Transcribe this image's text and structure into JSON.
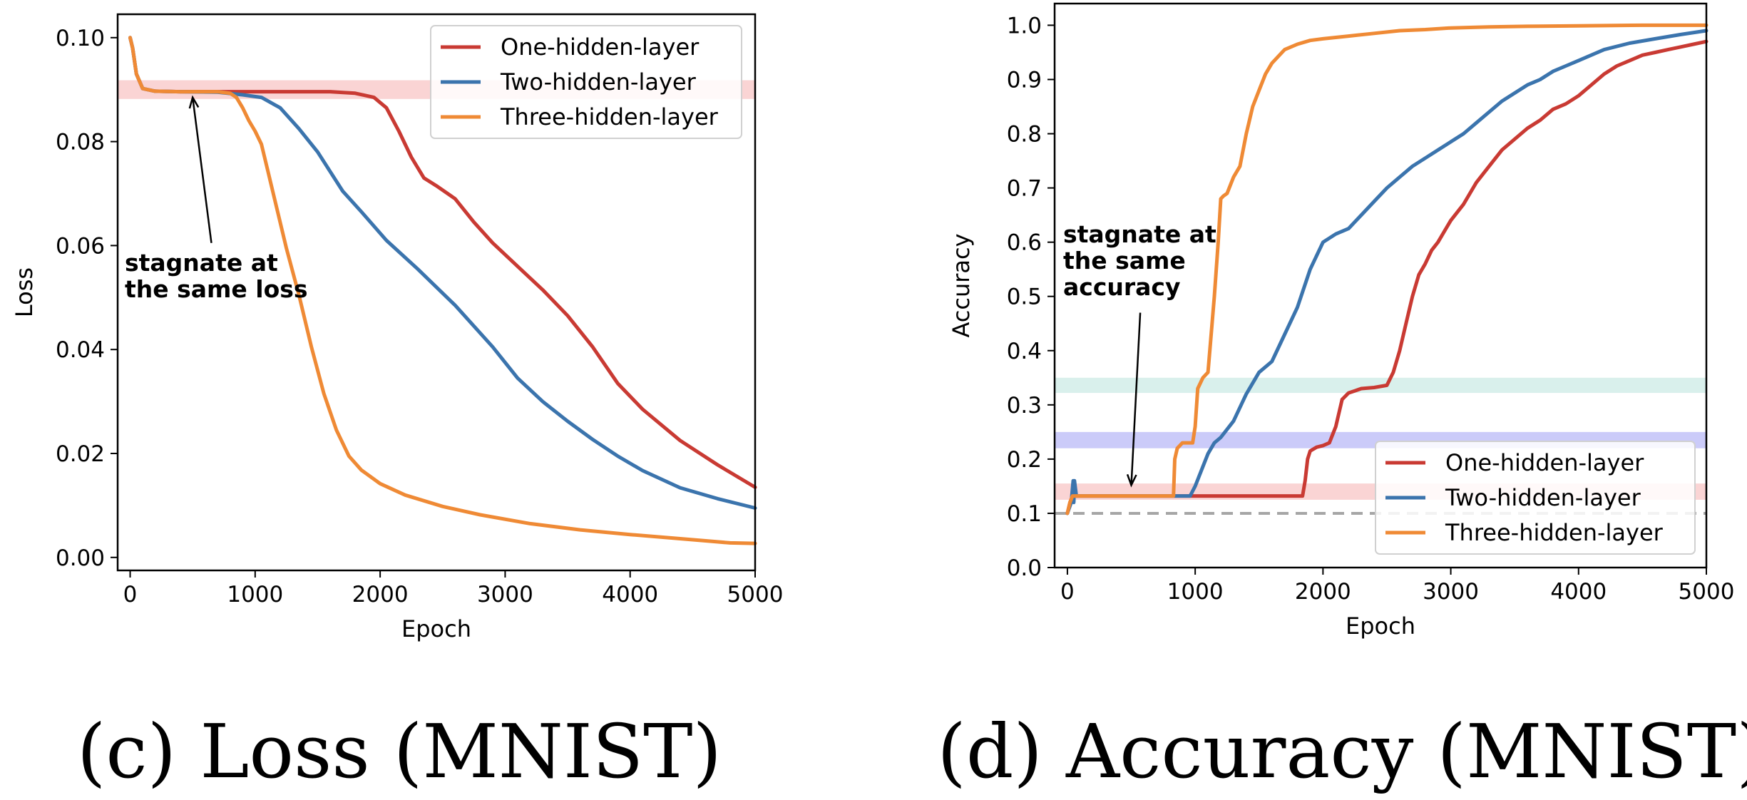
{
  "colors": {
    "one": "#c93a33",
    "two": "#3b74ad",
    "three": "#ef8a35",
    "band_red": "#f7b7b7",
    "band_teal": "#bfe6df",
    "band_blue": "#a9a9f5",
    "dashed": "#a6a6a6"
  },
  "chart_data": [
    {
      "type": "line",
      "caption": "(c) Loss (MNIST)",
      "xlabel": "Epoch",
      "ylabel": "Loss",
      "xlim": [
        -100,
        5000
      ],
      "ylim": [
        -0.0025,
        0.1045
      ],
      "xticks": [
        0,
        1000,
        2000,
        3000,
        4000,
        5000
      ],
      "xtick_labels": [
        "0",
        "1000",
        "2000",
        "3000",
        "4000",
        "5000"
      ],
      "yticks": [
        0.0,
        0.02,
        0.04,
        0.06,
        0.08,
        0.1
      ],
      "ytick_labels": [
        "0.00",
        "0.02",
        "0.04",
        "0.06",
        "0.08",
        "0.10"
      ],
      "legend_position": "top-right",
      "bands": [
        {
          "y0": 0.0882,
          "y1": 0.0918,
          "color": "band_red"
        }
      ],
      "annotation": {
        "text": [
          "stagnate at",
          "the same loss"
        ],
        "arrow_to": [
          500,
          0.0885
        ],
        "arrow_from": [
          650,
          0.0605
        ]
      },
      "series": [
        {
          "name": "One-hidden-layer",
          "color": "one",
          "x": [
            0,
            20,
            50,
            100,
            200,
            400,
            800,
            1200,
            1600,
            1800,
            1950,
            2050,
            2150,
            2250,
            2350,
            2450,
            2600,
            2750,
            2900,
            3100,
            3300,
            3500,
            3700,
            3900,
            4100,
            4400,
            4700,
            5000
          ],
          "y": [
            0.1,
            0.098,
            0.093,
            0.0902,
            0.0897,
            0.0896,
            0.0896,
            0.0896,
            0.0896,
            0.0893,
            0.0885,
            0.0865,
            0.082,
            0.077,
            0.073,
            0.0715,
            0.069,
            0.0645,
            0.0605,
            0.056,
            0.0515,
            0.0465,
            0.0405,
            0.0335,
            0.0285,
            0.0225,
            0.0178,
            0.0135
          ]
        },
        {
          "name": "Two-hidden-layer",
          "color": "two",
          "x": [
            0,
            20,
            50,
            100,
            200,
            400,
            700,
            900,
            1050,
            1200,
            1350,
            1500,
            1700,
            1850,
            2050,
            2300,
            2600,
            2900,
            3100,
            3300,
            3500,
            3700,
            3900,
            4100,
            4400,
            4700,
            5000
          ],
          "y": [
            0.1,
            0.098,
            0.093,
            0.0902,
            0.0897,
            0.0896,
            0.0895,
            0.089,
            0.0885,
            0.0865,
            0.0825,
            0.078,
            0.0705,
            0.0665,
            0.061,
            0.0555,
            0.0485,
            0.0405,
            0.0345,
            0.03,
            0.0262,
            0.0227,
            0.0195,
            0.0167,
            0.0134,
            0.0113,
            0.0095
          ]
        },
        {
          "name": "Three-hidden-layer",
          "color": "three",
          "x": [
            0,
            20,
            50,
            100,
            200,
            400,
            700,
            800,
            850,
            900,
            950,
            1000,
            1050,
            1100,
            1150,
            1250,
            1350,
            1450,
            1550,
            1650,
            1750,
            1850,
            2000,
            2200,
            2500,
            2800,
            3200,
            3600,
            4000,
            4400,
            4800,
            5000
          ],
          "y": [
            0.1,
            0.098,
            0.093,
            0.0902,
            0.0897,
            0.0896,
            0.0896,
            0.0893,
            0.0885,
            0.0865,
            0.084,
            0.082,
            0.0795,
            0.0745,
            0.0695,
            0.0595,
            0.0505,
            0.0405,
            0.0315,
            0.0245,
            0.0195,
            0.0168,
            0.0142,
            0.012,
            0.0098,
            0.0082,
            0.0065,
            0.0053,
            0.0044,
            0.0036,
            0.0028,
            0.0027
          ]
        }
      ]
    },
    {
      "type": "line",
      "caption": "(d) Accuracy (MNIST)",
      "xlabel": "Epoch",
      "ylabel": "Accuracy",
      "xlim": [
        -100,
        5000
      ],
      "ylim": [
        0.0,
        1.04
      ],
      "xticks": [
        0,
        1000,
        2000,
        3000,
        4000,
        5000
      ],
      "xtick_labels": [
        "0",
        "1000",
        "2000",
        "3000",
        "4000",
        "5000"
      ],
      "yticks": [
        0.0,
        0.1,
        0.2,
        0.3,
        0.4,
        0.5,
        0.6,
        0.7,
        0.8,
        0.9,
        1.0
      ],
      "ytick_labels": [
        "0.0",
        "0.1",
        "0.2",
        "0.3",
        "0.4",
        "0.5",
        "0.6",
        "0.7",
        "0.8",
        "0.9",
        "1.0"
      ],
      "legend_position": "lower-right",
      "bands": [
        {
          "y0": 0.322,
          "y1": 0.35,
          "color": "band_teal"
        },
        {
          "y0": 0.22,
          "y1": 0.25,
          "color": "band_blue"
        },
        {
          "y0": 0.125,
          "y1": 0.155,
          "color": "band_red"
        }
      ],
      "hline": {
        "y": 0.1,
        "color": "dashed",
        "style": "dashed"
      },
      "annotation": {
        "text": [
          "stagnate at",
          "the same",
          "accuracy"
        ],
        "arrow_to": [
          500,
          0.152
        ],
        "arrow_from": [
          570,
          0.47
        ]
      },
      "series": [
        {
          "name": "One-hidden-layer",
          "color": "one",
          "x": [
            0,
            20,
            40,
            60,
            100,
            500,
            1000,
            1500,
            1840,
            1860,
            1880,
            1900,
            1950,
            2000,
            2050,
            2100,
            2150,
            2200,
            2250,
            2300,
            2400,
            2500,
            2550,
            2600,
            2650,
            2700,
            2750,
            2800,
            2850,
            2900,
            2950,
            3000,
            3100,
            3200,
            3300,
            3400,
            3500,
            3600,
            3700,
            3800,
            3900,
            4000,
            4100,
            4200,
            4300,
            4400,
            4500,
            4600,
            4700,
            4800,
            4900,
            5000
          ],
          "y": [
            0.1,
            0.12,
            0.132,
            0.132,
            0.132,
            0.132,
            0.132,
            0.132,
            0.132,
            0.16,
            0.2,
            0.215,
            0.222,
            0.225,
            0.23,
            0.26,
            0.31,
            0.322,
            0.326,
            0.33,
            0.332,
            0.336,
            0.36,
            0.4,
            0.45,
            0.5,
            0.54,
            0.56,
            0.585,
            0.6,
            0.62,
            0.64,
            0.67,
            0.71,
            0.74,
            0.77,
            0.79,
            0.81,
            0.825,
            0.845,
            0.855,
            0.87,
            0.89,
            0.91,
            0.925,
            0.935,
            0.945,
            0.95,
            0.955,
            0.96,
            0.965,
            0.97
          ]
        },
        {
          "name": "Two-hidden-layer",
          "color": "two",
          "x": [
            0,
            30,
            45,
            50,
            55,
            70,
            100,
            500,
            960,
            1000,
            1050,
            1100,
            1150,
            1200,
            1300,
            1400,
            1500,
            1600,
            1700,
            1800,
            1900,
            2000,
            2100,
            2200,
            2300,
            2400,
            2500,
            2600,
            2700,
            2800,
            2900,
            3000,
            3100,
            3200,
            3300,
            3400,
            3500,
            3600,
            3700,
            3800,
            3900,
            4000,
            4200,
            4400,
            4600,
            4800,
            5000
          ],
          "y": [
            0.1,
            0.12,
            0.16,
            0.12,
            0.16,
            0.132,
            0.132,
            0.132,
            0.132,
            0.15,
            0.18,
            0.21,
            0.23,
            0.24,
            0.27,
            0.32,
            0.36,
            0.38,
            0.43,
            0.48,
            0.55,
            0.6,
            0.615,
            0.625,
            0.65,
            0.675,
            0.7,
            0.72,
            0.74,
            0.755,
            0.77,
            0.785,
            0.8,
            0.82,
            0.84,
            0.86,
            0.875,
            0.89,
            0.9,
            0.915,
            0.925,
            0.935,
            0.955,
            0.967,
            0.975,
            0.983,
            0.99
          ]
        },
        {
          "name": "Three-hidden-layer",
          "color": "three",
          "x": [
            0,
            20,
            40,
            60,
            100,
            500,
            830,
            840,
            860,
            900,
            980,
            1000,
            1020,
            1040,
            1060,
            1100,
            1150,
            1180,
            1200,
            1220,
            1250,
            1300,
            1350,
            1400,
            1450,
            1500,
            1550,
            1600,
            1700,
            1800,
            1900,
            2000,
            2200,
            2400,
            2600,
            2800,
            3000,
            3300,
            3600,
            4000,
            4500,
            5000
          ],
          "y": [
            0.1,
            0.12,
            0.132,
            0.132,
            0.132,
            0.132,
            0.132,
            0.2,
            0.22,
            0.23,
            0.23,
            0.26,
            0.33,
            0.34,
            0.35,
            0.36,
            0.5,
            0.6,
            0.68,
            0.685,
            0.69,
            0.72,
            0.74,
            0.8,
            0.85,
            0.88,
            0.91,
            0.93,
            0.955,
            0.965,
            0.972,
            0.975,
            0.98,
            0.985,
            0.99,
            0.992,
            0.995,
            0.997,
            0.998,
            0.999,
            1.0,
            1.0
          ]
        }
      ]
    }
  ]
}
